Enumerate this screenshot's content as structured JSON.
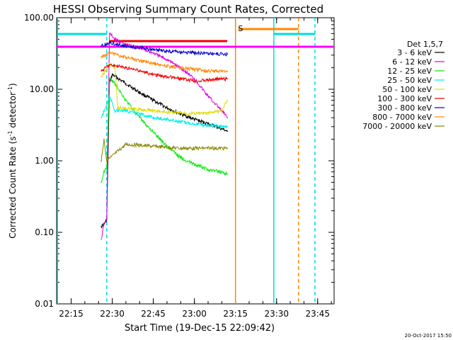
{
  "chart_data": {
    "type": "line",
    "title": "HESSI Observing Summary Count Rates, Corrected",
    "xlabel": "Start Time (19-Dec-15 22:09:42)",
    "ylabel": "Corrected Count Rate (s⁻¹ detector⁻¹)",
    "ylabel_base": "Corrected Count Rate (s",
    "ylabel_sup1": "-1",
    "ylabel_mid": " detector",
    "ylabel_sup2": "-1",
    "ylabel_end": ")",
    "x_scale": "time",
    "x_range": [
      "22:09:42",
      "23:51:00"
    ],
    "x_ticks": [
      "22:15",
      "22:30",
      "22:45",
      "23:00",
      "23:15",
      "23:30",
      "23:45"
    ],
    "y_scale": "log",
    "y_range": [
      0.01,
      100
    ],
    "y_ticks": [
      "0.01",
      "0.10",
      "1.00",
      "10.00",
      "100.00"
    ],
    "grid": false,
    "legend_position": "right",
    "legend_title": "Det 1,5,7",
    "timestamp": "20-Oct-2017 15:50",
    "series": [
      {
        "name": "3 - 6 keV",
        "color": "#000000",
        "points": [
          [
            "22:26",
            0.12
          ],
          [
            "22:27",
            0.13
          ],
          [
            "22:28",
            0.15
          ],
          [
            "22:29",
            12
          ],
          [
            "22:30",
            16
          ],
          [
            "22:35",
            12
          ],
          [
            "22:40",
            9
          ],
          [
            "22:45",
            7
          ],
          [
            "22:50",
            5.5
          ],
          [
            "22:55",
            4.5
          ],
          [
            "23:00",
            3.8
          ],
          [
            "23:05",
            3.3
          ],
          [
            "23:10",
            2.8
          ],
          [
            "23:12",
            2.6
          ]
        ]
      },
      {
        "name": "6 - 12 keV",
        "color": "#e000e0",
        "points": [
          [
            "22:26",
            0.08
          ],
          [
            "22:27",
            0.13
          ],
          [
            "22:28",
            0.15
          ],
          [
            "22:29",
            60
          ],
          [
            "22:31",
            50
          ],
          [
            "22:35",
            42
          ],
          [
            "22:40",
            38
          ],
          [
            "22:45",
            32
          ],
          [
            "22:50",
            26
          ],
          [
            "22:55",
            20
          ],
          [
            "23:00",
            14
          ],
          [
            "23:05",
            8
          ],
          [
            "23:10",
            5
          ],
          [
            "23:12",
            4
          ]
        ]
      },
      {
        "name": "12 - 25 keV",
        "color": "#00ee00",
        "points": [
          [
            "22:26",
            0.5
          ],
          [
            "22:27",
            0.7
          ],
          [
            "22:28",
            0.8
          ],
          [
            "22:29",
            14
          ],
          [
            "22:31",
            12
          ],
          [
            "22:35",
            7
          ],
          [
            "22:40",
            4
          ],
          [
            "22:45",
            2.5
          ],
          [
            "22:50",
            1.6
          ],
          [
            "22:55",
            1.1
          ],
          [
            "23:00",
            0.9
          ],
          [
            "23:05",
            0.75
          ],
          [
            "23:10",
            0.7
          ],
          [
            "23:12",
            0.65
          ]
        ]
      },
      {
        "name": "25 - 50 keV",
        "color": "#00eeee",
        "points": [
          [
            "22:26",
            4
          ],
          [
            "22:28",
            6
          ],
          [
            "22:29",
            8
          ],
          [
            "22:31",
            5
          ],
          [
            "22:35",
            5
          ],
          [
            "22:40",
            4.5
          ],
          [
            "22:45",
            4
          ],
          [
            "22:50",
            3.8
          ],
          [
            "22:55",
            3.5
          ],
          [
            "23:00",
            3.3
          ],
          [
            "23:05",
            3.1
          ],
          [
            "23:10",
            3
          ],
          [
            "23:12",
            3
          ]
        ]
      },
      {
        "name": "50 - 100 keV",
        "color": "#dddd00",
        "points": [
          [
            "22:26",
            15
          ],
          [
            "22:29",
            22
          ],
          [
            "22:31",
            20
          ],
          [
            "22:32",
            5.5
          ],
          [
            "22:40",
            5.2
          ],
          [
            "22:45",
            5
          ],
          [
            "22:50",
            4.8
          ],
          [
            "22:55",
            4.7
          ],
          [
            "23:00",
            4.6
          ],
          [
            "23:05",
            4.6
          ],
          [
            "23:10",
            5
          ],
          [
            "23:12",
            7
          ]
        ]
      },
      {
        "name": "100 - 300 keV",
        "color": "#ee0000",
        "points": [
          [
            "22:26",
            18
          ],
          [
            "22:29",
            22
          ],
          [
            "22:35",
            20
          ],
          [
            "22:40",
            18
          ],
          [
            "22:45",
            16
          ],
          [
            "22:50",
            15
          ],
          [
            "22:55",
            14
          ],
          [
            "23:00",
            13
          ],
          [
            "23:05",
            13.5
          ],
          [
            "23:10",
            14
          ],
          [
            "23:12",
            14
          ]
        ]
      },
      {
        "name": "300 - 800 keV",
        "color": "#0000cc",
        "points": [
          [
            "22:26",
            40
          ],
          [
            "22:29",
            45
          ],
          [
            "22:35",
            40
          ],
          [
            "22:40",
            38
          ],
          [
            "22:45",
            36
          ],
          [
            "22:50",
            34
          ],
          [
            "22:55",
            33
          ],
          [
            "23:00",
            32
          ],
          [
            "23:05",
            32
          ],
          [
            "23:10",
            31
          ],
          [
            "23:12",
            31
          ]
        ]
      },
      {
        "name": "800 - 7000 keV",
        "color": "#ff8800",
        "points": [
          [
            "22:26",
            28
          ],
          [
            "22:29",
            32
          ],
          [
            "22:35",
            28
          ],
          [
            "22:40",
            25
          ],
          [
            "22:45",
            23
          ],
          [
            "22:50",
            21
          ],
          [
            "22:55",
            20
          ],
          [
            "23:00",
            19
          ],
          [
            "23:05",
            18
          ],
          [
            "23:10",
            18
          ],
          [
            "23:12",
            18
          ]
        ]
      },
      {
        "name": "7000 - 20000 keV",
        "color": "#888800",
        "points": [
          [
            "22:26",
            1
          ],
          [
            "22:27",
            2
          ],
          [
            "22:28",
            1
          ],
          [
            "22:35",
            1.7
          ],
          [
            "22:45",
            1.6
          ],
          [
            "22:55",
            1.5
          ],
          [
            "23:05",
            1.5
          ],
          [
            "23:12",
            1.5
          ]
        ]
      }
    ],
    "annotations": [
      {
        "label": "S",
        "color": "#ff8800",
        "time": "23:17",
        "value": 75
      }
    ]
  }
}
